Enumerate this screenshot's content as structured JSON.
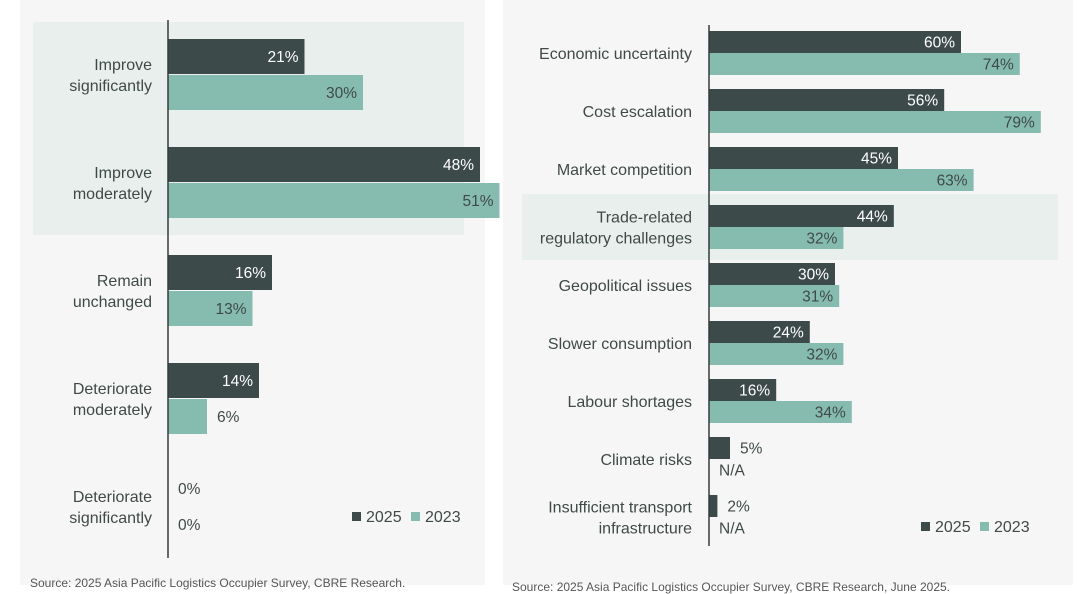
{
  "colors": {
    "series_2025": "#3d4a4a",
    "series_2023": "#86bbb0",
    "highlight": "#e8efec",
    "axis": "#333d3b"
  },
  "chart_data": [
    {
      "type": "bar",
      "orientation": "horizontal",
      "categories": [
        [
          "Improve",
          "significantly"
        ],
        [
          "Improve",
          "moderately"
        ],
        [
          "Remain",
          "unchanged"
        ],
        [
          "Deteriorate",
          "moderately"
        ],
        [
          "Deteriorate",
          "significantly"
        ]
      ],
      "series": [
        {
          "name": "2025",
          "values": [
            21,
            48,
            16,
            14,
            0
          ],
          "labels": [
            "21%",
            "48%",
            "16%",
            "14%",
            "0%"
          ]
        },
        {
          "name": "2023",
          "values": [
            30,
            51,
            13,
            6,
            0
          ],
          "labels": [
            "30%",
            "51%",
            "13%",
            "6%",
            "0%"
          ]
        }
      ],
      "highlighted_categories": [
        0,
        1
      ],
      "legend": [
        "2025",
        "2023"
      ],
      "legend_position": "bottom-right",
      "xlim": [
        0,
        100
      ]
    },
    {
      "type": "bar",
      "orientation": "horizontal",
      "categories": [
        [
          "Economic uncertainty"
        ],
        [
          "Cost escalation"
        ],
        [
          "Market competition"
        ],
        [
          "Trade-related",
          "regulatory challenges"
        ],
        [
          "Geopolitical issues"
        ],
        [
          "Slower consumption"
        ],
        [
          "Labour shortages"
        ],
        [
          "Climate risks"
        ],
        [
          "Insufficient transport",
          "infrastructure"
        ]
      ],
      "series": [
        {
          "name": "2025",
          "values": [
            60,
            56,
            45,
            44,
            30,
            24,
            16,
            5,
            2
          ],
          "labels": [
            "60%",
            "56%",
            "45%",
            "44%",
            "30%",
            "24%",
            "16%",
            "5%",
            "2%"
          ]
        },
        {
          "name": "2023",
          "values": [
            74,
            79,
            63,
            32,
            31,
            32,
            34,
            null,
            null
          ],
          "labels": [
            "74%",
            "79%",
            "63%",
            "32%",
            "31%",
            "32%",
            "34%",
            "N/A",
            "N/A"
          ]
        }
      ],
      "highlighted_categories": [
        3
      ],
      "legend": [
        "2025",
        "2023"
      ],
      "legend_position": "bottom-right",
      "xlim": [
        0,
        100
      ]
    }
  ],
  "sources": {
    "left": "Source: 2025 Asia Pacific Logistics Occupier Survey, CBRE Research.",
    "right": "Source: 2025 Asia Pacific Logistics Occupier Survey, CBRE Research, June 2025."
  }
}
